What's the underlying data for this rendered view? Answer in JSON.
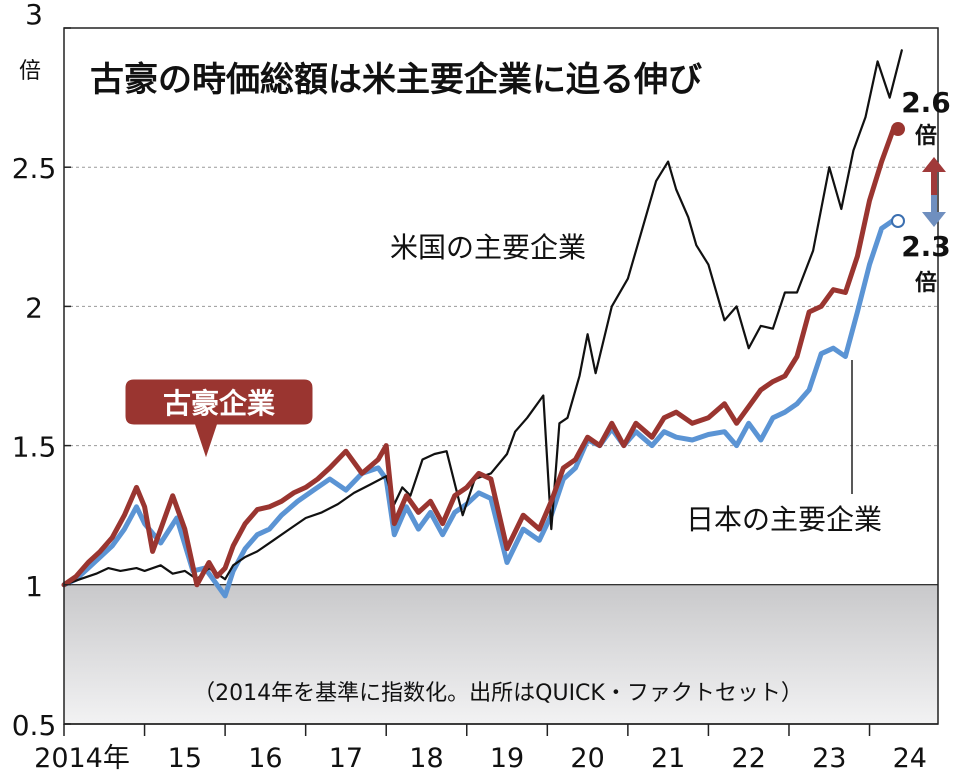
{
  "chart_data": {
    "type": "line",
    "title": "古豪の時価総額は米主要企業に迫る伸び",
    "note": "（2014年を基準に指数化。出所はQUICK・ファクトセット）",
    "y_unit": "倍",
    "y_ticks": [
      "3",
      "2.5",
      "2",
      "1.5",
      "1",
      "0.5"
    ],
    "x_ticks": [
      "2014年",
      "15",
      "16",
      "17",
      "18",
      "19",
      "20",
      "21",
      "22",
      "23",
      "24"
    ],
    "ylim": [
      0.5,
      3
    ],
    "xlim": [
      2014,
      2024.85
    ],
    "grid": true,
    "series": [
      {
        "name": "米国の主要企業",
        "color": "#111111",
        "x": [
          2014.0,
          2014.2,
          2014.4,
          2014.55,
          2014.7,
          2014.9,
          2015.0,
          2015.2,
          2015.35,
          2015.5,
          2015.65,
          2015.8,
          2016.0,
          2016.1,
          2016.25,
          2016.4,
          2016.6,
          2016.8,
          2017.0,
          2017.2,
          2017.4,
          2017.6,
          2017.8,
          2018.0,
          2018.1,
          2018.2,
          2018.3,
          2018.45,
          2018.6,
          2018.75,
          2018.95,
          2019.1,
          2019.3,
          2019.5,
          2019.6,
          2019.75,
          2019.95,
          2020.05,
          2020.15,
          2020.25,
          2020.4,
          2020.5,
          2020.6,
          2020.8,
          2021.0,
          2021.2,
          2021.35,
          2021.5,
          2021.6,
          2021.75,
          2021.85,
          2022.0,
          2022.2,
          2022.35,
          2022.5,
          2022.65,
          2022.8,
          2022.95,
          2023.1,
          2023.3,
          2023.5,
          2023.65,
          2023.8,
          2023.95,
          2024.1,
          2024.25,
          2024.4
        ],
        "y": [
          1.0,
          1.02,
          1.04,
          1.06,
          1.05,
          1.06,
          1.05,
          1.07,
          1.04,
          1.05,
          1.02,
          1.06,
          1.02,
          1.07,
          1.1,
          1.12,
          1.16,
          1.2,
          1.24,
          1.26,
          1.29,
          1.33,
          1.36,
          1.39,
          1.29,
          1.35,
          1.32,
          1.45,
          1.47,
          1.48,
          1.25,
          1.38,
          1.4,
          1.47,
          1.55,
          1.6,
          1.68,
          1.2,
          1.58,
          1.6,
          1.75,
          1.9,
          1.76,
          2.0,
          2.1,
          2.3,
          2.45,
          2.52,
          2.42,
          2.32,
          2.22,
          2.15,
          1.95,
          2.0,
          1.85,
          1.93,
          1.92,
          2.05,
          2.05,
          2.2,
          2.5,
          2.35,
          2.56,
          2.68,
          2.88,
          2.75,
          2.92
        ]
      },
      {
        "name": "古豪企業",
        "color": "#9a3530",
        "x": [
          2014.0,
          2014.15,
          2014.3,
          2014.45,
          2014.6,
          2014.75,
          2014.9,
          2015.0,
          2015.1,
          2015.2,
          2015.35,
          2015.5,
          2015.65,
          2015.8,
          2015.9,
          2016.0,
          2016.1,
          2016.25,
          2016.4,
          2016.55,
          2016.7,
          2016.85,
          2017.0,
          2017.15,
          2017.3,
          2017.5,
          2017.7,
          2017.9,
          2018.0,
          2018.1,
          2018.25,
          2018.4,
          2018.55,
          2018.7,
          2018.85,
          2019.0,
          2019.15,
          2019.3,
          2019.5,
          2019.7,
          2019.9,
          2020.05,
          2020.2,
          2020.35,
          2020.5,
          2020.65,
          2020.8,
          2020.95,
          2021.1,
          2021.3,
          2021.45,
          2021.6,
          2021.8,
          2022.0,
          2022.2,
          2022.35,
          2022.5,
          2022.65,
          2022.8,
          2022.95,
          2023.1,
          2023.25,
          2023.4,
          2023.55,
          2023.7,
          2023.85,
          2024.0,
          2024.15,
          2024.3
        ],
        "y": [
          1.0,
          1.03,
          1.08,
          1.12,
          1.17,
          1.25,
          1.35,
          1.28,
          1.12,
          1.2,
          1.32,
          1.2,
          1.0,
          1.08,
          1.03,
          1.06,
          1.14,
          1.22,
          1.27,
          1.28,
          1.3,
          1.33,
          1.35,
          1.38,
          1.42,
          1.48,
          1.4,
          1.45,
          1.5,
          1.22,
          1.32,
          1.26,
          1.3,
          1.22,
          1.32,
          1.35,
          1.4,
          1.38,
          1.13,
          1.25,
          1.2,
          1.3,
          1.42,
          1.45,
          1.53,
          1.5,
          1.58,
          1.5,
          1.58,
          1.53,
          1.6,
          1.62,
          1.58,
          1.6,
          1.65,
          1.58,
          1.64,
          1.7,
          1.73,
          1.75,
          1.82,
          1.98,
          2.0,
          2.06,
          2.05,
          2.18,
          2.38,
          2.52,
          2.64
        ]
      },
      {
        "name": "日本の主要企業",
        "color": "#5b94d4",
        "x": [
          2014.0,
          2014.15,
          2014.3,
          2014.45,
          2014.6,
          2014.75,
          2014.9,
          2015.0,
          2015.2,
          2015.4,
          2015.6,
          2015.75,
          2015.9,
          2016.0,
          2016.1,
          2016.25,
          2016.4,
          2016.55,
          2016.7,
          2016.9,
          2017.1,
          2017.3,
          2017.5,
          2017.7,
          2017.9,
          2018.0,
          2018.1,
          2018.25,
          2018.4,
          2018.55,
          2018.7,
          2018.85,
          2019.0,
          2019.15,
          2019.3,
          2019.5,
          2019.7,
          2019.9,
          2020.05,
          2020.2,
          2020.35,
          2020.5,
          2020.65,
          2020.8,
          2020.95,
          2021.1,
          2021.3,
          2021.45,
          2021.6,
          2021.8,
          2022.0,
          2022.2,
          2022.35,
          2022.5,
          2022.65,
          2022.8,
          2022.95,
          2023.1,
          2023.25,
          2023.4,
          2023.55,
          2023.7,
          2023.85,
          2024.0,
          2024.15,
          2024.3
        ],
        "y": [
          1.0,
          1.02,
          1.06,
          1.1,
          1.14,
          1.2,
          1.28,
          1.22,
          1.15,
          1.24,
          1.05,
          1.06,
          1.0,
          0.96,
          1.05,
          1.13,
          1.18,
          1.2,
          1.25,
          1.3,
          1.34,
          1.38,
          1.34,
          1.4,
          1.42,
          1.38,
          1.18,
          1.28,
          1.2,
          1.26,
          1.18,
          1.26,
          1.29,
          1.33,
          1.31,
          1.08,
          1.2,
          1.16,
          1.25,
          1.38,
          1.42,
          1.52,
          1.5,
          1.56,
          1.5,
          1.55,
          1.5,
          1.55,
          1.53,
          1.52,
          1.54,
          1.55,
          1.5,
          1.58,
          1.52,
          1.6,
          1.62,
          1.65,
          1.7,
          1.83,
          1.85,
          1.82,
          1.98,
          2.15,
          2.28,
          2.31
        ]
      }
    ],
    "annotations": [
      {
        "text": "米国の主要企業"
      },
      {
        "text": "古豪企業"
      },
      {
        "text": "日本の主要企業"
      },
      {
        "value": "2.6",
        "unit": "倍"
      },
      {
        "value": "2.3",
        "unit": "倍"
      }
    ]
  }
}
